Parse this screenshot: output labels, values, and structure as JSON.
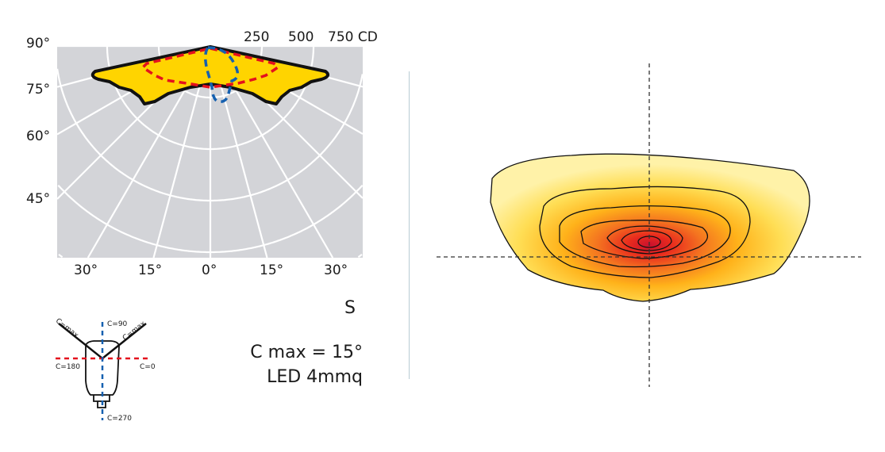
{
  "polar": {
    "scale_labels": [
      "250",
      "500",
      "750 CD"
    ],
    "left_angle_labels": [
      "90°",
      "75°",
      "60°",
      "45°"
    ],
    "bottom_angle_labels": [
      "30°",
      "15°",
      "0°",
      "15°",
      "30°"
    ],
    "colors": {
      "grid_bg": "#d3d4d8",
      "fill": "#ffd400",
      "outline": "#111111",
      "c0_180": "#e4111d",
      "c90_270": "#1560b0"
    }
  },
  "luminaire": {
    "labels": {
      "cmax_left": "C=max",
      "cmax_right": "C=max",
      "c90": "C=90",
      "c180": "C=180",
      "c0": "C=0",
      "c270": "C=270"
    }
  },
  "info": {
    "series": "S",
    "cmax": "C max = 15°",
    "led": "LED 4mmq"
  },
  "isolux": {
    "colors": [
      "#fff2a8",
      "#ffd21a",
      "#ffa41a",
      "#f47420",
      "#e82a1e",
      "#c8102e"
    ]
  }
}
